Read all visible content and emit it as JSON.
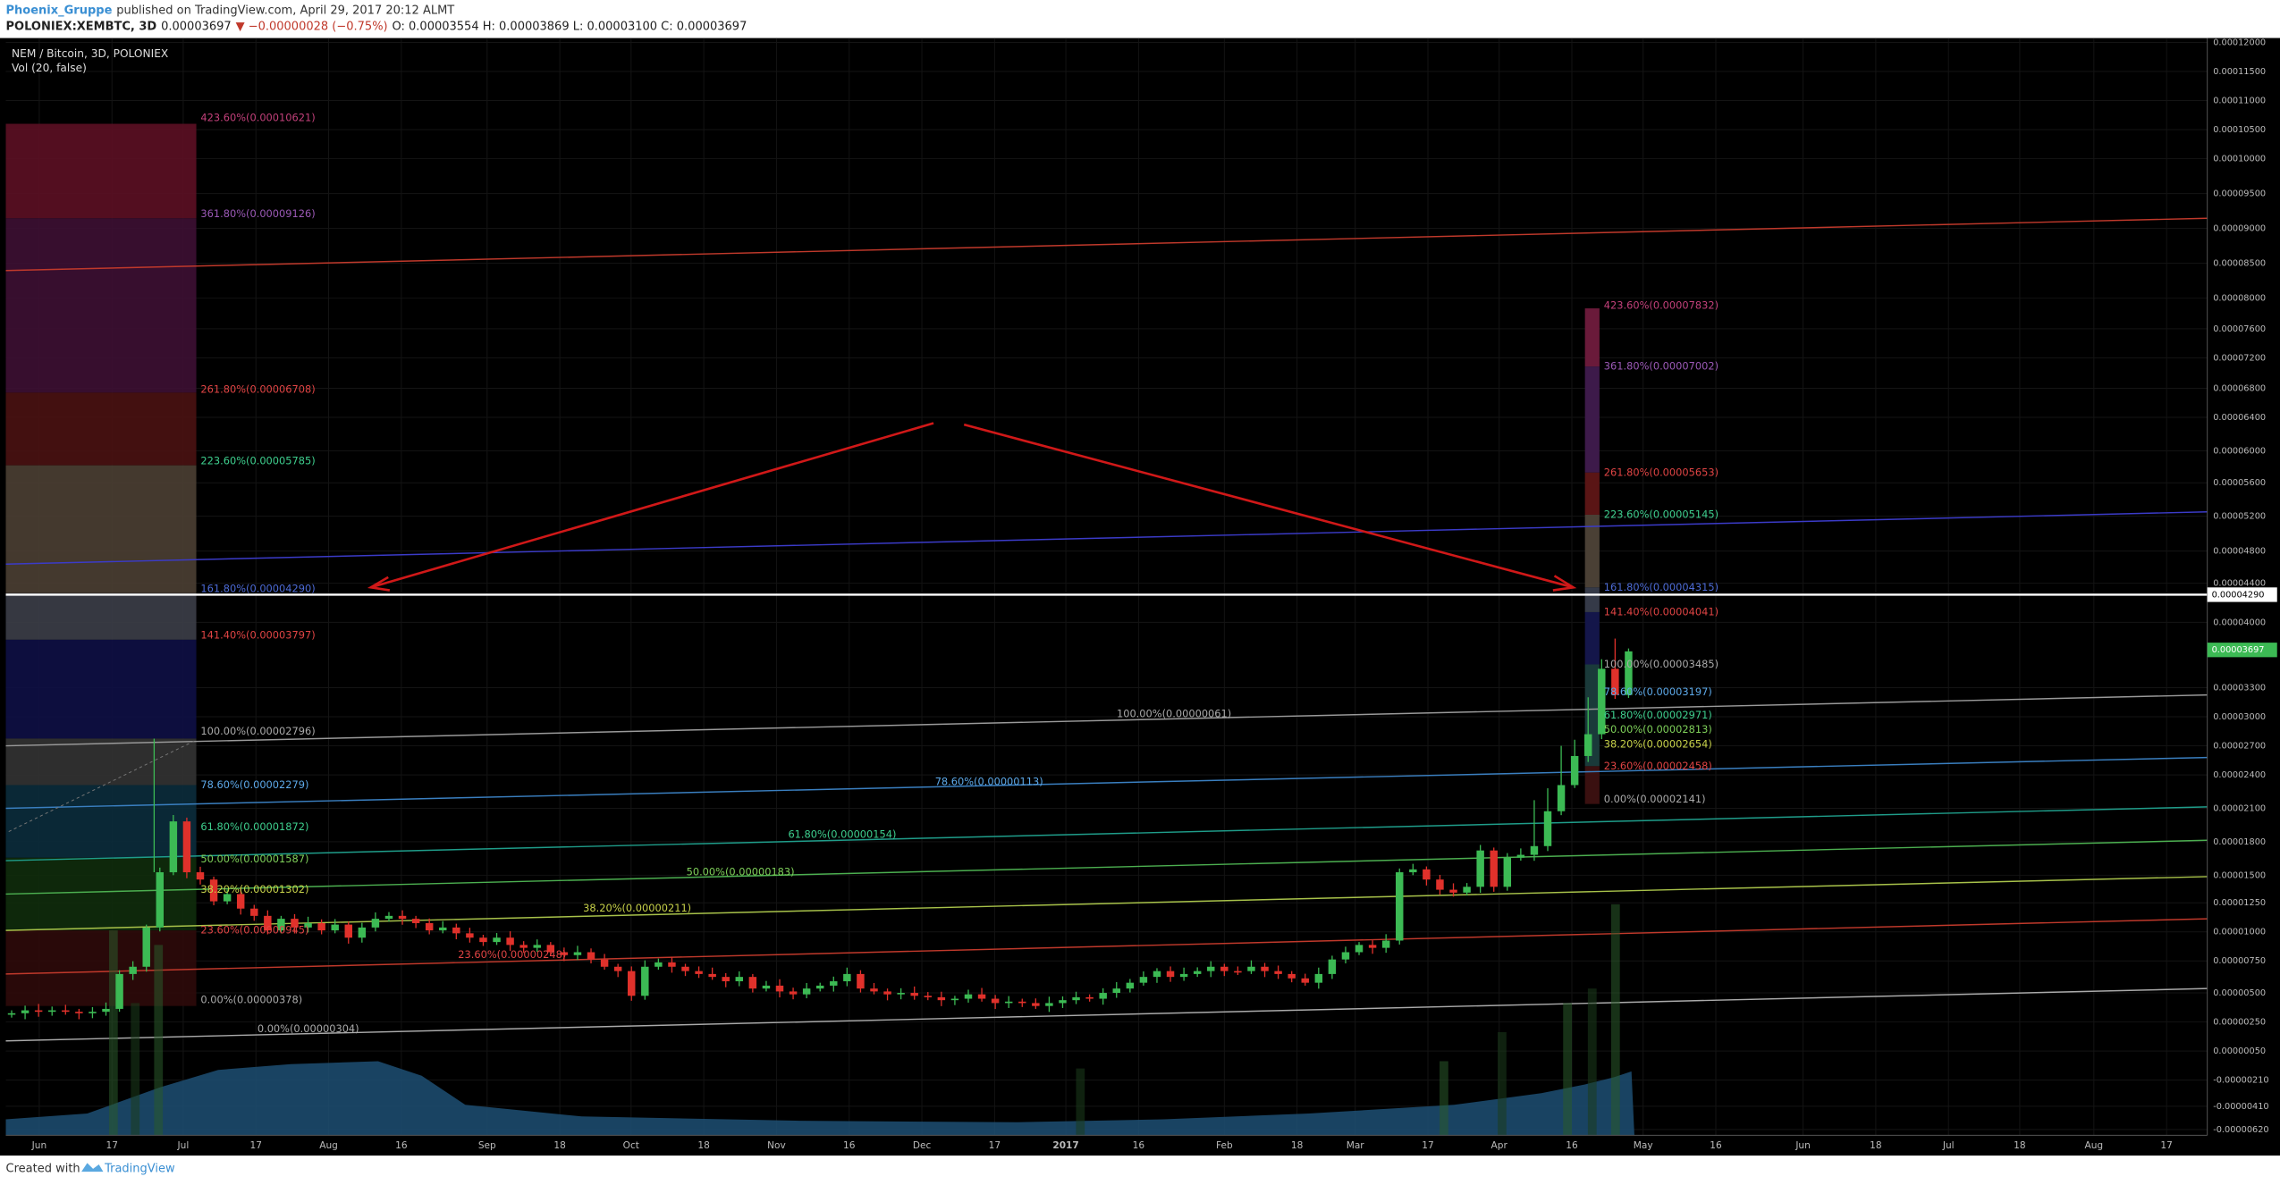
{
  "header": {
    "author": "Phoenix_Gruppe",
    "published": "published on TradingView.com, April 29, 2017 20:12 ALMT",
    "symbol": "POLONIEX:XEMBTC, 3D",
    "last": "0.00003697",
    "change": "▼ −0.00000028 (−0.75%)",
    "ohlc": "O: 0.00003554 H: 0.00003869 L: 0.00003100 C: 0.00003697"
  },
  "legend": {
    "title": "NEM / Bitcoin, 3D, POLONIEX",
    "volume": "Vol (20, false)"
  },
  "price_axis": {
    "labels": [
      "0.00012000",
      "0.00011500",
      "0.00011000",
      "0.00010500",
      "0.00010000",
      "0.00009500",
      "0.00009000",
      "0.00008500",
      "0.00008000",
      "0.00007600",
      "0.00007200",
      "0.00006800",
      "0.00006400",
      "0.00006000",
      "0.00005600",
      "0.00005200",
      "0.00004800",
      "0.00004400",
      "0.00004000",
      "0.00003300",
      "0.00003000",
      "0.00002700",
      "0.00002400",
      "0.00002100",
      "0.00001800",
      "0.00001500",
      "0.00001250",
      "0.00001000",
      "0.00000750",
      "0.00000500",
      "0.00000250",
      "0.00000050",
      "-0.00000210",
      "-0.00000410",
      "-0.00000620"
    ],
    "line_marker": "0.00004290",
    "last_marker": "0.00003697"
  },
  "time_axis": {
    "labels": [
      "Jun",
      "17",
      "Jul",
      "17",
      "Aug",
      "16",
      "Sep",
      "18",
      "Oct",
      "18",
      "Nov",
      "16",
      "Dec",
      "17",
      "2017",
      "16",
      "Feb",
      "18",
      "Mar",
      "17",
      "Apr",
      "16",
      "May",
      "16",
      "Jun",
      "18",
      "Jul",
      "18",
      "Aug",
      "17"
    ]
  },
  "fib_left": [
    "423.60%(0.00010621)",
    "361.80%(0.00009126)",
    "261.80%(0.00006708)",
    "223.60%(0.00005785)",
    "161.80%(0.00004290)",
    "141.40%(0.00003797)",
    "100.00%(0.00002796)",
    "78.60%(0.00002279)",
    "61.80%(0.00001872)",
    "50.00%(0.00001587)",
    "38.20%(0.00001302)",
    "23.60%(0.00000945)",
    "0.00%(0.00000378)"
  ],
  "fib_right": [
    "423.60%(0.00007832)",
    "361.80%(0.00007002)",
    "261.80%(0.00005653)",
    "223.60%(0.00005145)",
    "161.80%(0.00004315)",
    "141.40%(0.00004041)",
    "100.00%(0.00003485)",
    "78.60%(0.00003197)",
    "61.80%(0.00002971)",
    "50.00%(0.00002813)",
    "38.20%(0.00002654)",
    "23.60%(0.00002458)",
    "0.00%(0.00002141)"
  ],
  "fib_trend": [
    "100.00%(0.00000061)",
    "78.60%(0.00000113)",
    "61.80%(0.00000154)",
    "50.00%(0.00000183)",
    "38.20%(0.00000211)",
    "23.60%(0.00000248)",
    "0.00%(0.00000304)"
  ],
  "footer": {
    "created": "Created with",
    "brand": "TradingView"
  }
}
